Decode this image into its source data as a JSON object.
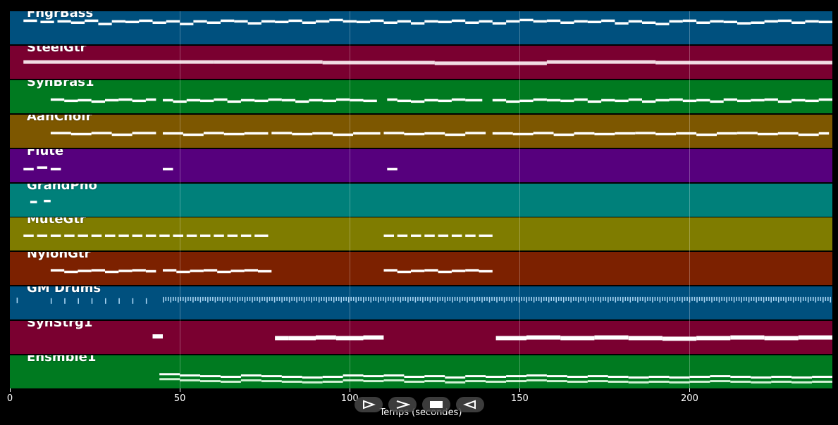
{
  "tracks": [
    {
      "name": "FngrBass",
      "bg": "#00507e",
      "style": "melody",
      "notes": [
        [
          4,
          8,
          0.72
        ],
        [
          9,
          13,
          0.68
        ],
        [
          14,
          18,
          0.7
        ],
        [
          18,
          22,
          0.66
        ],
        [
          22,
          26,
          0.72
        ],
        [
          26,
          30,
          0.62
        ],
        [
          30,
          34,
          0.7
        ],
        [
          34,
          38,
          0.68
        ],
        [
          38,
          42,
          0.72
        ],
        [
          42,
          46,
          0.66
        ],
        [
          46,
          50,
          0.7
        ],
        [
          50,
          54,
          0.62
        ],
        [
          54,
          58,
          0.7
        ],
        [
          58,
          62,
          0.66
        ],
        [
          62,
          66,
          0.72
        ],
        [
          66,
          70,
          0.7
        ],
        [
          70,
          74,
          0.64
        ],
        [
          74,
          78,
          0.7
        ],
        [
          78,
          82,
          0.68
        ],
        [
          82,
          86,
          0.72
        ],
        [
          86,
          90,
          0.66
        ],
        [
          90,
          94,
          0.7
        ],
        [
          94,
          98,
          0.74
        ],
        [
          98,
          102,
          0.7
        ],
        [
          102,
          106,
          0.68
        ],
        [
          106,
          110,
          0.72
        ],
        [
          110,
          114,
          0.66
        ],
        [
          114,
          118,
          0.7
        ],
        [
          118,
          122,
          0.64
        ],
        [
          122,
          126,
          0.7
        ],
        [
          126,
          130,
          0.68
        ],
        [
          130,
          134,
          0.72
        ],
        [
          134,
          138,
          0.66
        ],
        [
          138,
          142,
          0.7
        ],
        [
          142,
          146,
          0.64
        ],
        [
          146,
          150,
          0.7
        ],
        [
          150,
          154,
          0.74
        ],
        [
          154,
          158,
          0.7
        ],
        [
          158,
          162,
          0.72
        ],
        [
          162,
          166,
          0.66
        ],
        [
          166,
          170,
          0.7
        ],
        [
          170,
          174,
          0.68
        ],
        [
          174,
          178,
          0.72
        ],
        [
          178,
          182,
          0.64
        ],
        [
          182,
          186,
          0.7
        ],
        [
          186,
          190,
          0.66
        ],
        [
          190,
          194,
          0.62
        ],
        [
          194,
          198,
          0.7
        ],
        [
          198,
          202,
          0.72
        ],
        [
          202,
          206,
          0.66
        ],
        [
          206,
          210,
          0.7
        ],
        [
          210,
          214,
          0.68
        ],
        [
          214,
          218,
          0.64
        ],
        [
          218,
          222,
          0.66
        ],
        [
          222,
          226,
          0.7
        ],
        [
          226,
          230,
          0.72
        ],
        [
          230,
          234,
          0.66
        ],
        [
          234,
          238,
          0.7
        ],
        [
          238,
          242,
          0.68
        ]
      ]
    },
    {
      "name": "SteelGtr",
      "bg": "#7a0030",
      "style": "dense",
      "notes": [
        [
          4,
          60,
          0.52
        ],
        [
          60,
          92,
          0.52
        ],
        [
          92,
          125,
          0.5
        ],
        [
          125,
          158,
          0.48
        ],
        [
          158,
          190,
          0.52
        ],
        [
          190,
          242,
          0.5
        ]
      ]
    },
    {
      "name": "SynBras1",
      "bg": "#007a20",
      "style": "melody",
      "notes": [
        [
          12,
          16,
          0.42
        ],
        [
          16,
          20,
          0.38
        ],
        [
          20,
          24,
          0.4
        ],
        [
          24,
          28,
          0.36
        ],
        [
          28,
          32,
          0.4
        ],
        [
          32,
          36,
          0.42
        ],
        [
          36,
          40,
          0.38
        ],
        [
          40,
          43,
          0.42
        ],
        [
          45,
          48,
          0.4
        ],
        [
          48,
          52,
          0.36
        ],
        [
          52,
          56,
          0.4
        ],
        [
          56,
          60,
          0.38
        ],
        [
          60,
          64,
          0.42
        ],
        [
          64,
          68,
          0.36
        ],
        [
          68,
          72,
          0.4
        ],
        [
          72,
          76,
          0.38
        ],
        [
          76,
          80,
          0.42
        ],
        [
          80,
          84,
          0.4
        ],
        [
          84,
          88,
          0.36
        ],
        [
          88,
          92,
          0.4
        ],
        [
          92,
          96,
          0.38
        ],
        [
          96,
          100,
          0.42
        ],
        [
          100,
          104,
          0.4
        ],
        [
          104,
          108,
          0.38
        ],
        [
          111,
          114,
          0.42
        ],
        [
          114,
          118,
          0.38
        ],
        [
          118,
          122,
          0.36
        ],
        [
          122,
          126,
          0.4
        ],
        [
          126,
          130,
          0.38
        ],
        [
          130,
          134,
          0.42
        ],
        [
          134,
          139,
          0.4
        ],
        [
          142,
          146,
          0.4
        ],
        [
          146,
          150,
          0.36
        ],
        [
          150,
          154,
          0.38
        ],
        [
          154,
          158,
          0.42
        ],
        [
          158,
          162,
          0.4
        ],
        [
          162,
          166,
          0.38
        ],
        [
          166,
          170,
          0.42
        ],
        [
          170,
          174,
          0.36
        ],
        [
          174,
          178,
          0.4
        ],
        [
          178,
          182,
          0.38
        ],
        [
          182,
          186,
          0.42
        ],
        [
          186,
          190,
          0.36
        ],
        [
          190,
          194,
          0.4
        ],
        [
          194,
          198,
          0.42
        ],
        [
          198,
          202,
          0.38
        ],
        [
          202,
          206,
          0.4
        ],
        [
          206,
          210,
          0.36
        ],
        [
          210,
          214,
          0.42
        ],
        [
          214,
          218,
          0.38
        ],
        [
          218,
          222,
          0.4
        ],
        [
          222,
          226,
          0.42
        ],
        [
          226,
          230,
          0.36
        ],
        [
          230,
          234,
          0.4
        ],
        [
          234,
          238,
          0.38
        ],
        [
          238,
          242,
          0.42
        ]
      ]
    },
    {
      "name": "AahChoir",
      "bg": "#7d5700",
      "style": "melody",
      "notes": [
        [
          12,
          18,
          0.45
        ],
        [
          18,
          24,
          0.42
        ],
        [
          24,
          30,
          0.45
        ],
        [
          30,
          36,
          0.4
        ],
        [
          36,
          43,
          0.45
        ],
        [
          45,
          51,
          0.44
        ],
        [
          51,
          57,
          0.4
        ],
        [
          57,
          63,
          0.45
        ],
        [
          63,
          69,
          0.42
        ],
        [
          69,
          76,
          0.44
        ],
        [
          77,
          83,
          0.45
        ],
        [
          83,
          89,
          0.42
        ],
        [
          89,
          95,
          0.44
        ],
        [
          95,
          101,
          0.4
        ],
        [
          101,
          107,
          0.44
        ],
        [
          107,
          109,
          0.44
        ],
        [
          110,
          116,
          0.45
        ],
        [
          116,
          122,
          0.42
        ],
        [
          122,
          128,
          0.44
        ],
        [
          128,
          134,
          0.4
        ],
        [
          134,
          140,
          0.45
        ],
        [
          142,
          148,
          0.44
        ],
        [
          148,
          154,
          0.42
        ],
        [
          154,
          160,
          0.45
        ],
        [
          160,
          166,
          0.4
        ],
        [
          166,
          172,
          0.44
        ],
        [
          172,
          178,
          0.42
        ],
        [
          178,
          184,
          0.44
        ],
        [
          184,
          190,
          0.45
        ],
        [
          190,
          196,
          0.42
        ],
        [
          196,
          202,
          0.44
        ],
        [
          202,
          208,
          0.4
        ],
        [
          208,
          214,
          0.44
        ],
        [
          214,
          220,
          0.45
        ],
        [
          220,
          226,
          0.42
        ],
        [
          226,
          232,
          0.44
        ],
        [
          232,
          238,
          0.4
        ],
        [
          238,
          241,
          0.44
        ]
      ]
    },
    {
      "name": "Flute",
      "bg": "#56007d",
      "style": "melody",
      "notes": [
        [
          4,
          7,
          0.4
        ],
        [
          8,
          11,
          0.45
        ],
        [
          12,
          15,
          0.4
        ],
        [
          45,
          48,
          0.4
        ],
        [
          111,
          114,
          0.4
        ]
      ]
    },
    {
      "name": "GrandPno",
      "bg": "#00807a",
      "style": "melody",
      "notes": [
        [
          6,
          8,
          0.45
        ],
        [
          10,
          12,
          0.48
        ]
      ]
    },
    {
      "name": "MuteGtr",
      "bg": "#7f7c00",
      "style": "melody",
      "notes": [
        [
          4,
          7,
          0.45
        ],
        [
          8,
          11,
          0.45
        ],
        [
          12,
          15,
          0.45
        ],
        [
          16,
          19,
          0.45
        ],
        [
          20,
          23,
          0.45
        ],
        [
          24,
          27,
          0.45
        ],
        [
          28,
          31,
          0.45
        ],
        [
          32,
          35,
          0.45
        ],
        [
          36,
          39,
          0.45
        ],
        [
          40,
          43,
          0.45
        ],
        [
          44,
          47,
          0.45
        ],
        [
          48,
          51,
          0.45
        ],
        [
          52,
          55,
          0.45
        ],
        [
          56,
          59,
          0.45
        ],
        [
          60,
          63,
          0.45
        ],
        [
          64,
          67,
          0.45
        ],
        [
          68,
          71,
          0.45
        ],
        [
          72,
          76,
          0.45
        ],
        [
          110,
          113,
          0.45
        ],
        [
          114,
          117,
          0.45
        ],
        [
          118,
          121,
          0.45
        ],
        [
          122,
          125,
          0.45
        ],
        [
          126,
          129,
          0.45
        ],
        [
          130,
          133,
          0.45
        ],
        [
          134,
          137,
          0.45
        ],
        [
          138,
          142,
          0.45
        ]
      ]
    },
    {
      "name": "NylonGtr",
      "bg": "#7c2100",
      "style": "melody",
      "notes": [
        [
          12,
          16,
          0.45
        ],
        [
          16,
          20,
          0.4
        ],
        [
          20,
          24,
          0.43
        ],
        [
          24,
          28,
          0.45
        ],
        [
          28,
          32,
          0.4
        ],
        [
          32,
          36,
          0.43
        ],
        [
          36,
          40,
          0.45
        ],
        [
          40,
          43,
          0.42
        ],
        [
          45,
          49,
          0.45
        ],
        [
          49,
          53,
          0.4
        ],
        [
          53,
          57,
          0.43
        ],
        [
          57,
          61,
          0.45
        ],
        [
          61,
          65,
          0.4
        ],
        [
          65,
          69,
          0.43
        ],
        [
          69,
          73,
          0.45
        ],
        [
          73,
          77,
          0.42
        ],
        [
          110,
          114,
          0.45
        ],
        [
          114,
          118,
          0.4
        ],
        [
          118,
          122,
          0.43
        ],
        [
          122,
          126,
          0.45
        ],
        [
          126,
          130,
          0.4
        ],
        [
          130,
          134,
          0.43
        ],
        [
          134,
          138,
          0.45
        ],
        [
          138,
          142,
          0.42
        ]
      ]
    },
    {
      "name": "GM Drums",
      "bg": "#00507e",
      "style": "drums",
      "notes": [
        [
          2,
          2.5,
          0.62
        ],
        [
          12,
          12.5,
          0.6
        ],
        [
          16,
          16.5,
          0.6
        ],
        [
          20,
          20.5,
          0.6
        ],
        [
          24,
          24.5,
          0.6
        ],
        [
          28,
          28.5,
          0.6
        ],
        [
          32,
          32.5,
          0.6
        ],
        [
          36,
          36.5,
          0.6
        ],
        [
          40,
          40.5,
          0.6
        ],
        [
          45,
          242,
          0.64
        ]
      ]
    },
    {
      "name": "SynStrg1",
      "bg": "#7a0030",
      "style": "long",
      "notes": [
        [
          42,
          45,
          0.55
        ],
        [
          78,
          82,
          0.5
        ],
        [
          82,
          90,
          0.5
        ],
        [
          90,
          96,
          0.52
        ],
        [
          96,
          104,
          0.5
        ],
        [
          104,
          110,
          0.52
        ],
        [
          143,
          152,
          0.5
        ],
        [
          152,
          162,
          0.52
        ],
        [
          162,
          172,
          0.5
        ],
        [
          172,
          182,
          0.52
        ],
        [
          182,
          192,
          0.5
        ],
        [
          192,
          202,
          0.48
        ],
        [
          202,
          212,
          0.5
        ],
        [
          212,
          222,
          0.52
        ],
        [
          222,
          232,
          0.5
        ],
        [
          232,
          242,
          0.52
        ]
      ]
    },
    {
      "name": "Ensmble1",
      "bg": "#007a20",
      "style": "ensemble",
      "notes": [
        [
          44,
          50,
          0.42
        ],
        [
          50,
          56,
          0.38
        ],
        [
          56,
          62,
          0.36
        ],
        [
          62,
          68,
          0.34
        ],
        [
          68,
          74,
          0.38
        ],
        [
          74,
          80,
          0.36
        ],
        [
          80,
          86,
          0.34
        ],
        [
          86,
          92,
          0.32
        ],
        [
          92,
          98,
          0.34
        ],
        [
          98,
          104,
          0.38
        ],
        [
          104,
          110,
          0.36
        ],
        [
          110,
          116,
          0.38
        ],
        [
          116,
          122,
          0.34
        ],
        [
          122,
          128,
          0.36
        ],
        [
          128,
          134,
          0.32
        ],
        [
          134,
          140,
          0.36
        ],
        [
          140,
          146,
          0.34
        ],
        [
          146,
          152,
          0.36
        ],
        [
          152,
          158,
          0.38
        ],
        [
          158,
          164,
          0.36
        ],
        [
          164,
          170,
          0.34
        ],
        [
          170,
          176,
          0.36
        ],
        [
          176,
          182,
          0.34
        ],
        [
          182,
          188,
          0.32
        ],
        [
          188,
          194,
          0.34
        ],
        [
          194,
          200,
          0.32
        ],
        [
          200,
          206,
          0.34
        ],
        [
          206,
          212,
          0.36
        ],
        [
          212,
          218,
          0.34
        ],
        [
          218,
          224,
          0.32
        ],
        [
          224,
          230,
          0.34
        ],
        [
          230,
          236,
          0.32
        ],
        [
          236,
          242,
          0.34
        ]
      ]
    }
  ],
  "axis": {
    "xmin": 0,
    "xmax": 242,
    "ticks": [
      {
        "value": 0,
        "label": "0"
      },
      {
        "value": 50,
        "label": "50"
      },
      {
        "value": 100,
        "label": "100"
      },
      {
        "value": 150,
        "label": "150"
      },
      {
        "value": 200,
        "label": "200"
      }
    ],
    "xlabel": "Temps (secondes)"
  },
  "controls": [
    {
      "name": "play-button",
      "icon": "play-icon"
    },
    {
      "name": "fast-forward-button",
      "icon": "fast-forward-icon"
    },
    {
      "name": "stop-button",
      "icon": "stop-icon"
    },
    {
      "name": "rewind-button",
      "icon": "rewind-icon"
    }
  ]
}
